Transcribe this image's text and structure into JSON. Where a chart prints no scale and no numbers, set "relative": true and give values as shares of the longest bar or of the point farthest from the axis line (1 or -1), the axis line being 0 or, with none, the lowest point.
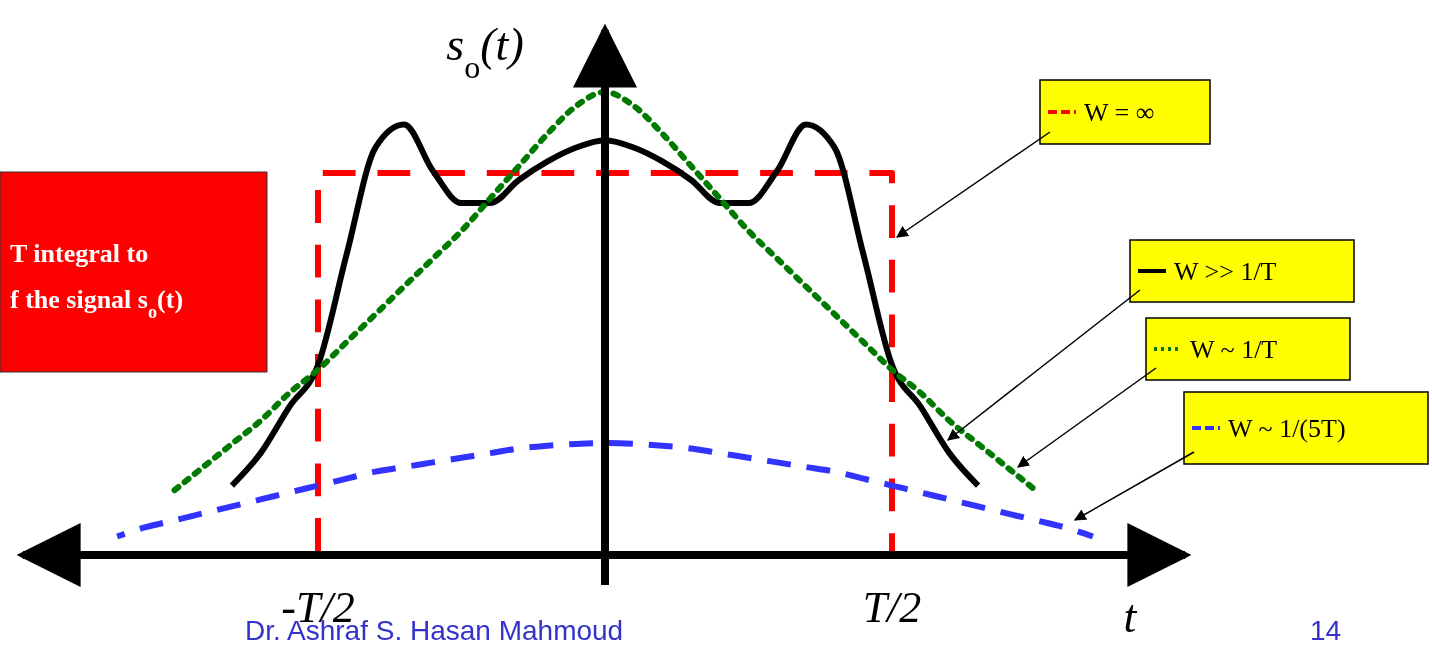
{
  "chart_data": {
    "type": "line",
    "relative": true,
    "xlabel": "t",
    "ylabel": "s$_{o}$(t)",
    "categories": [
      null,
      null,
      null,
      null,
      null,
      null,
      null,
      null,
      null,
      null,
      "-T/2",
      null,
      null,
      null,
      null,
      null,
      null,
      null,
      null,
      null,
      null,
      null,
      null,
      null,
      null,
      null,
      null,
      null,
      null,
      null,
      "T/2",
      null,
      null,
      null,
      null,
      null,
      null,
      null,
      null,
      null,
      null
    ],
    "legend": "right",
    "series": [
      {
        "name": "W = ∞",
        "type": "step",
        "color": "#ff0000",
        "line_style": "dashed",
        "values": [
          null,
          null,
          null,
          null,
          null,
          null,
          null,
          null,
          null,
          0,
          0.825,
          0.825,
          0.825,
          0.825,
          0.825,
          0.825,
          0.825,
          0.825,
          0.825,
          0.825,
          0.825,
          0.825,
          0.825,
          0.825,
          0.825,
          0.825,
          0.825,
          0.825,
          0.825,
          0.825,
          0,
          null,
          null,
          null,
          null,
          null,
          null,
          null,
          null,
          null,
          null
        ]
      },
      {
        "name": "W >> 1/T",
        "color": "#000000",
        "line_style": "solid",
        "values": [
          null,
          null,
          null,
          null,
          null,
          null,
          null,
          0.15,
          0.22,
          0.32,
          0.41,
          0.65,
          0.88,
          0.93,
          0.83,
          0.76,
          0.76,
          0.81,
          0.85,
          0.88,
          0.896,
          0.88,
          0.85,
          0.81,
          0.76,
          0.76,
          0.83,
          0.93,
          0.88,
          0.65,
          0.41,
          0.32,
          0.22,
          0.15,
          null,
          null,
          null,
          null,
          null,
          null,
          null
        ]
      },
      {
        "name": "W ~ 1/T",
        "color": "#007a00",
        "line_style": "dotted",
        "values": [
          null,
          null,
          null,
          null,
          null,
          0.14,
          0.19,
          0.24,
          0.29,
          0.35,
          0.4,
          0.46,
          0.52,
          0.58,
          0.64,
          0.7,
          0.77,
          0.84,
          0.91,
          0.97,
          1,
          0.97,
          0.91,
          0.84,
          0.77,
          0.7,
          0.64,
          0.58,
          0.52,
          0.46,
          0.4,
          0.35,
          0.29,
          0.24,
          0.19,
          0.14,
          null,
          null,
          null,
          null,
          null
        ]
      },
      {
        "name": "W ~ 1/(5T)",
        "color": "#3333ff",
        "line_style": "dashed",
        "values": [
          null,
          null,
          null,
          0.04,
          0.06,
          0.075,
          0.09,
          0.105,
          0.12,
          0.135,
          0.15,
          0.165,
          0.18,
          0.19,
          0.2,
          0.21,
          0.22,
          0.23,
          0.236,
          0.24,
          0.242,
          0.24,
          0.236,
          0.23,
          0.22,
          0.21,
          0.2,
          0.19,
          0.18,
          0.165,
          0.15,
          0.135,
          0.12,
          0.105,
          0.09,
          0.075,
          0.06,
          0.04,
          null,
          null,
          null
        ]
      }
    ],
    "annotations": [
      "T integral to",
      "f the signal s$_{o}$(t)",
      "Dr. Ashraf S. Hasan Mahmoud",
      "14"
    ]
  }
}
